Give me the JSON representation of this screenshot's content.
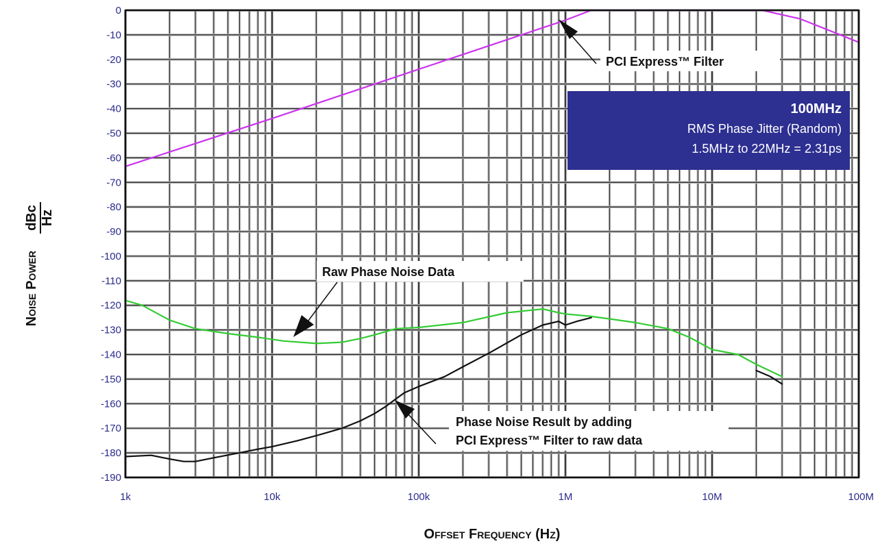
{
  "chart_data": {
    "type": "line",
    "title": "",
    "xlabel": "Offset Frequency (Hz)",
    "ylabel": "Noise Power",
    "ylabel_unit_num": "dBc",
    "ylabel_unit_den": "Hz",
    "x_scale": "log",
    "xlim": [
      1000,
      100000000
    ],
    "ylim": [
      -190,
      0
    ],
    "grid": true,
    "x_ticks": [
      1000,
      10000,
      100000,
      1000000,
      10000000,
      100000000
    ],
    "x_tick_labels": [
      "1k",
      "10k",
      "100k",
      "1M",
      "10M",
      "100M"
    ],
    "y_ticks": [
      0,
      -10,
      -20,
      -30,
      -40,
      -50,
      -60,
      -70,
      -80,
      -90,
      -100,
      -110,
      -120,
      -130,
      -140,
      -150,
      -160,
      -170,
      -180,
      -190
    ],
    "y_tick_labels": [
      "0",
      "-10",
      "-20",
      "-30",
      "-40",
      "-50",
      "-60",
      "-70",
      "-80",
      "-90",
      "-100",
      "-110",
      "-120",
      "-130",
      "-140",
      "-150",
      "-160",
      "-170",
      "-180",
      "-190"
    ],
    "series": [
      {
        "key": "filter",
        "name": "PCI Express™ Filter",
        "color": "#cc33ee",
        "x": [
          1000,
          10000,
          100000,
          1000000,
          1500000,
          3000000,
          10000000,
          22000000,
          40000000,
          100000000
        ],
        "y": [
          -63.5,
          -44,
          -24,
          -4,
          0,
          0,
          0,
          0,
          -3.5,
          -13
        ]
      },
      {
        "key": "raw",
        "name": "Raw Phase Noise Data",
        "color": "#33cc33",
        "x": [
          1000,
          1300,
          2000,
          3000,
          5000,
          8000,
          12000,
          20000,
          30000,
          40000,
          50000,
          70000,
          100000,
          200000,
          400000,
          700000,
          900000,
          1000000,
          1500000,
          2000000,
          3000000,
          5000000,
          7000000,
          10000000,
          15000000,
          20000000,
          30000000
        ],
        "y": [
          -118,
          -120,
          -126,
          -129.5,
          -131.5,
          -133,
          -134.5,
          -135.5,
          -135,
          -133.5,
          -132,
          -129.5,
          -129,
          -127,
          -123,
          -121.5,
          -123,
          -123.5,
          -124.5,
          -125.5,
          -127,
          -129.5,
          -133,
          -138,
          -140,
          -144,
          -149
        ]
      },
      {
        "key": "result",
        "name": "Phase Noise Result by adding PCI Express™ Filter to raw data",
        "color": "#111111",
        "x": [
          1000,
          1500,
          2000,
          2500,
          3000,
          4000,
          6000,
          8000,
          10000,
          15000,
          20000,
          30000,
          40000,
          50000,
          60000,
          70000,
          80000,
          100000,
          150000,
          200000,
          300000,
          500000,
          700000,
          900000,
          1000000,
          1200000,
          1500000
        ],
        "y": [
          -181.5,
          -181,
          -182.5,
          -183.5,
          -183.5,
          -182,
          -180,
          -178.5,
          -177.5,
          -175,
          -173,
          -170,
          -167,
          -164,
          -161,
          -158,
          -155.5,
          -153,
          -149,
          -145,
          -139.5,
          -132,
          -128,
          -126.5,
          -128,
          -126.5,
          -125
        ]
      },
      {
        "key": "result_tail",
        "color": "#111111",
        "x": [
          20000000,
          25000000,
          30000000
        ],
        "y": [
          -146.5,
          -149,
          -152
        ]
      }
    ]
  },
  "annotations": {
    "filter_label": "PCI Express™ Filter",
    "raw_label": "Raw Phase Noise Data",
    "result_label_line1": "Phase Noise Result by adding",
    "result_label_line2": "PCI Express™ Filter to raw data"
  },
  "infobox": {
    "title": "100MHz",
    "line1": "RMS Phase Jitter (Random)",
    "line2": "1.5MHz to 22MHz = 2.31ps",
    "bg_color": "#2d2f91"
  }
}
